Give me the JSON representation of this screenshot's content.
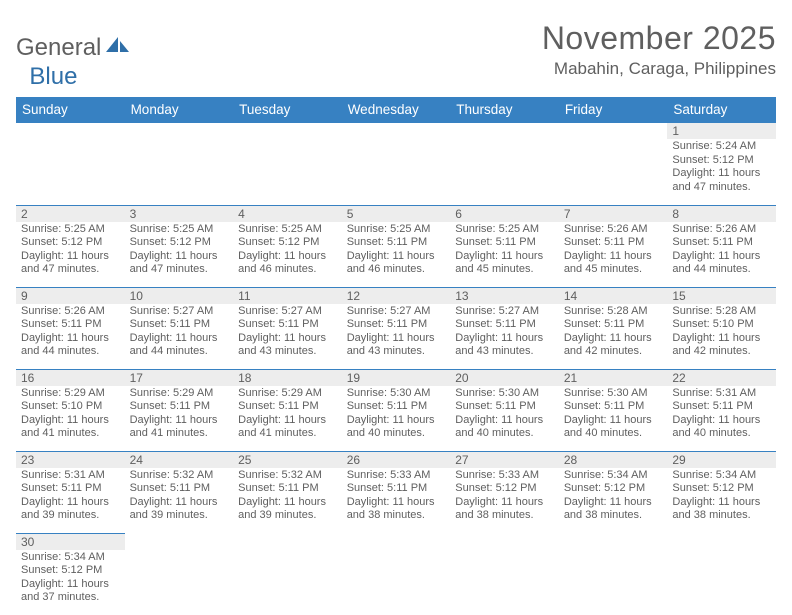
{
  "logo": {
    "text_a": "General",
    "text_b": "Blue"
  },
  "title": "November 2025",
  "location": "Mabahin, Caraga, Philippines",
  "colors": {
    "header_bg": "#3781c2",
    "header_text": "#ffffff",
    "daynum_bg": "#ededed",
    "text": "#5f5f5f",
    "row_border": "#3781c2",
    "background": "#ffffff"
  },
  "typography": {
    "title_fontsize": 32,
    "location_fontsize": 17,
    "weekday_fontsize": 13.5,
    "daynum_fontsize": 12,
    "info_fontsize": 11
  },
  "weekdays": [
    "Sunday",
    "Monday",
    "Tuesday",
    "Wednesday",
    "Thursday",
    "Friday",
    "Saturday"
  ],
  "weeks": [
    [
      null,
      null,
      null,
      null,
      null,
      null,
      {
        "n": "1",
        "sr": "5:24 AM",
        "ss": "5:12 PM",
        "dl": "11 hours and 47 minutes."
      }
    ],
    [
      {
        "n": "2",
        "sr": "5:25 AM",
        "ss": "5:12 PM",
        "dl": "11 hours and 47 minutes."
      },
      {
        "n": "3",
        "sr": "5:25 AM",
        "ss": "5:12 PM",
        "dl": "11 hours and 47 minutes."
      },
      {
        "n": "4",
        "sr": "5:25 AM",
        "ss": "5:12 PM",
        "dl": "11 hours and 46 minutes."
      },
      {
        "n": "5",
        "sr": "5:25 AM",
        "ss": "5:11 PM",
        "dl": "11 hours and 46 minutes."
      },
      {
        "n": "6",
        "sr": "5:25 AM",
        "ss": "5:11 PM",
        "dl": "11 hours and 45 minutes."
      },
      {
        "n": "7",
        "sr": "5:26 AM",
        "ss": "5:11 PM",
        "dl": "11 hours and 45 minutes."
      },
      {
        "n": "8",
        "sr": "5:26 AM",
        "ss": "5:11 PM",
        "dl": "11 hours and 44 minutes."
      }
    ],
    [
      {
        "n": "9",
        "sr": "5:26 AM",
        "ss": "5:11 PM",
        "dl": "11 hours and 44 minutes."
      },
      {
        "n": "10",
        "sr": "5:27 AM",
        "ss": "5:11 PM",
        "dl": "11 hours and 44 minutes."
      },
      {
        "n": "11",
        "sr": "5:27 AM",
        "ss": "5:11 PM",
        "dl": "11 hours and 43 minutes."
      },
      {
        "n": "12",
        "sr": "5:27 AM",
        "ss": "5:11 PM",
        "dl": "11 hours and 43 minutes."
      },
      {
        "n": "13",
        "sr": "5:27 AM",
        "ss": "5:11 PM",
        "dl": "11 hours and 43 minutes."
      },
      {
        "n": "14",
        "sr": "5:28 AM",
        "ss": "5:11 PM",
        "dl": "11 hours and 42 minutes."
      },
      {
        "n": "15",
        "sr": "5:28 AM",
        "ss": "5:10 PM",
        "dl": "11 hours and 42 minutes."
      }
    ],
    [
      {
        "n": "16",
        "sr": "5:29 AM",
        "ss": "5:10 PM",
        "dl": "11 hours and 41 minutes."
      },
      {
        "n": "17",
        "sr": "5:29 AM",
        "ss": "5:11 PM",
        "dl": "11 hours and 41 minutes."
      },
      {
        "n": "18",
        "sr": "5:29 AM",
        "ss": "5:11 PM",
        "dl": "11 hours and 41 minutes."
      },
      {
        "n": "19",
        "sr": "5:30 AM",
        "ss": "5:11 PM",
        "dl": "11 hours and 40 minutes."
      },
      {
        "n": "20",
        "sr": "5:30 AM",
        "ss": "5:11 PM",
        "dl": "11 hours and 40 minutes."
      },
      {
        "n": "21",
        "sr": "5:30 AM",
        "ss": "5:11 PM",
        "dl": "11 hours and 40 minutes."
      },
      {
        "n": "22",
        "sr": "5:31 AM",
        "ss": "5:11 PM",
        "dl": "11 hours and 40 minutes."
      }
    ],
    [
      {
        "n": "23",
        "sr": "5:31 AM",
        "ss": "5:11 PM",
        "dl": "11 hours and 39 minutes."
      },
      {
        "n": "24",
        "sr": "5:32 AM",
        "ss": "5:11 PM",
        "dl": "11 hours and 39 minutes."
      },
      {
        "n": "25",
        "sr": "5:32 AM",
        "ss": "5:11 PM",
        "dl": "11 hours and 39 minutes."
      },
      {
        "n": "26",
        "sr": "5:33 AM",
        "ss": "5:11 PM",
        "dl": "11 hours and 38 minutes."
      },
      {
        "n": "27",
        "sr": "5:33 AM",
        "ss": "5:12 PM",
        "dl": "11 hours and 38 minutes."
      },
      {
        "n": "28",
        "sr": "5:34 AM",
        "ss": "5:12 PM",
        "dl": "11 hours and 38 minutes."
      },
      {
        "n": "29",
        "sr": "5:34 AM",
        "ss": "5:12 PM",
        "dl": "11 hours and 38 minutes."
      }
    ],
    [
      {
        "n": "30",
        "sr": "5:34 AM",
        "ss": "5:12 PM",
        "dl": "11 hours and 37 minutes."
      },
      null,
      null,
      null,
      null,
      null,
      null
    ]
  ],
  "labels": {
    "sunrise": "Sunrise:",
    "sunset": "Sunset:",
    "daylight": "Daylight:"
  }
}
